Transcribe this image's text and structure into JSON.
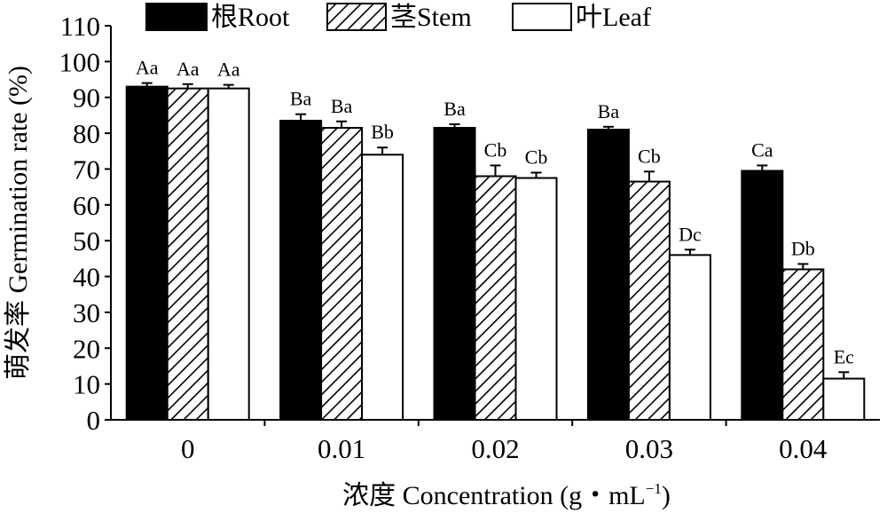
{
  "chart_data": {
    "type": "bar",
    "categories": [
      "0",
      "0.01",
      "0.02",
      "0.03",
      "0.04"
    ],
    "series": [
      {
        "name": "根Root",
        "values": [
          93,
          83.5,
          81.5,
          81,
          69.5
        ],
        "errors": [
          1,
          1.8,
          1,
          0.8,
          1.5
        ],
        "labels": [
          "Aa",
          "Ba",
          "Ba",
          "Ba",
          "Ca"
        ],
        "fill": "solid"
      },
      {
        "name": "茎Stem",
        "values": [
          92.5,
          81.5,
          68,
          66.5,
          42
        ],
        "errors": [
          1.2,
          1.8,
          3,
          2.8,
          1.5
        ],
        "labels": [
          "Aa",
          "Ba",
          "Cb",
          "Cb",
          "Db"
        ],
        "fill": "hatch"
      },
      {
        "name": "叶Leaf",
        "values": [
          92.5,
          74,
          67.5,
          46,
          11.5
        ],
        "errors": [
          1,
          2,
          1.5,
          1.5,
          1.8
        ],
        "labels": [
          "Aa",
          "Bb",
          "Cb",
          "Dc",
          "Ec"
        ],
        "fill": "empty"
      }
    ],
    "yticks": [
      0,
      10,
      20,
      30,
      40,
      50,
      60,
      70,
      80,
      90,
      100,
      110
    ],
    "ylim": [
      0,
      110
    ],
    "ylabel": "萌发率 Germination rate (%)",
    "xlabel_main": "浓度 Concentration (g・mL",
    "xlabel_sup": "−1",
    "xlabel_end": ")",
    "legend_position": "top",
    "grid": false,
    "colors": {
      "bar_fill": "#000000",
      "bar_stroke": "#000000",
      "background": "#ffffff"
    }
  }
}
